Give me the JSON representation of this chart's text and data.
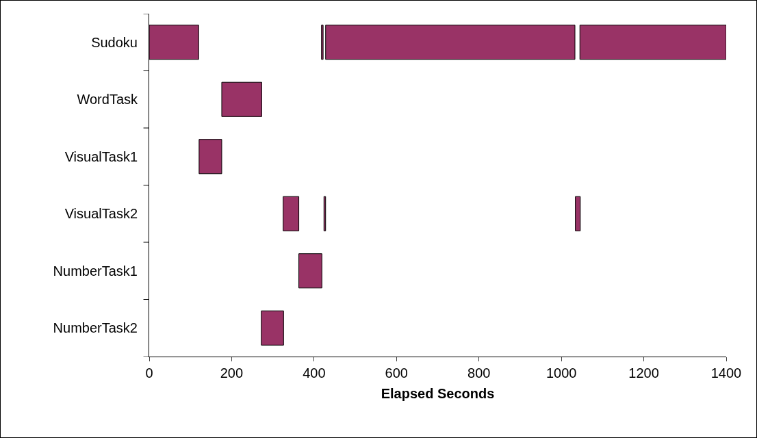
{
  "chart_data": {
    "type": "bar",
    "orientation": "horizontal",
    "xlabel": "Elapsed Seconds",
    "categories": [
      "Sudoku",
      "WordTask",
      "VisualTask1",
      "VisualTask2",
      "NumberTask1",
      "NumberTask2"
    ],
    "series": [
      {
        "color": "#993366",
        "base": [
          0,
          176,
          121,
          325,
          363,
          272
        ],
        "values": [
          120,
          97,
          55,
          38,
          56,
          54
        ]
      },
      {
        "color": "#993366",
        "base": [
          418,
          null,
          null,
          424,
          null,
          null
        ],
        "values": [
          4,
          null,
          null,
          4,
          null,
          null
        ]
      },
      {
        "color": "#993366",
        "base": [
          428,
          null,
          null,
          1034,
          null,
          null
        ],
        "values": [
          605,
          null,
          null,
          12,
          null,
          null
        ]
      },
      {
        "color": "#993366",
        "base": [
          1045,
          null,
          null,
          null,
          null,
          null
        ],
        "values": [
          355,
          null,
          null,
          null,
          null,
          null
        ]
      }
    ],
    "xlim": [
      0,
      1400
    ],
    "xticks": [
      0,
      200,
      400,
      600,
      800,
      1000,
      1200,
      1400
    ],
    "grid": false
  }
}
